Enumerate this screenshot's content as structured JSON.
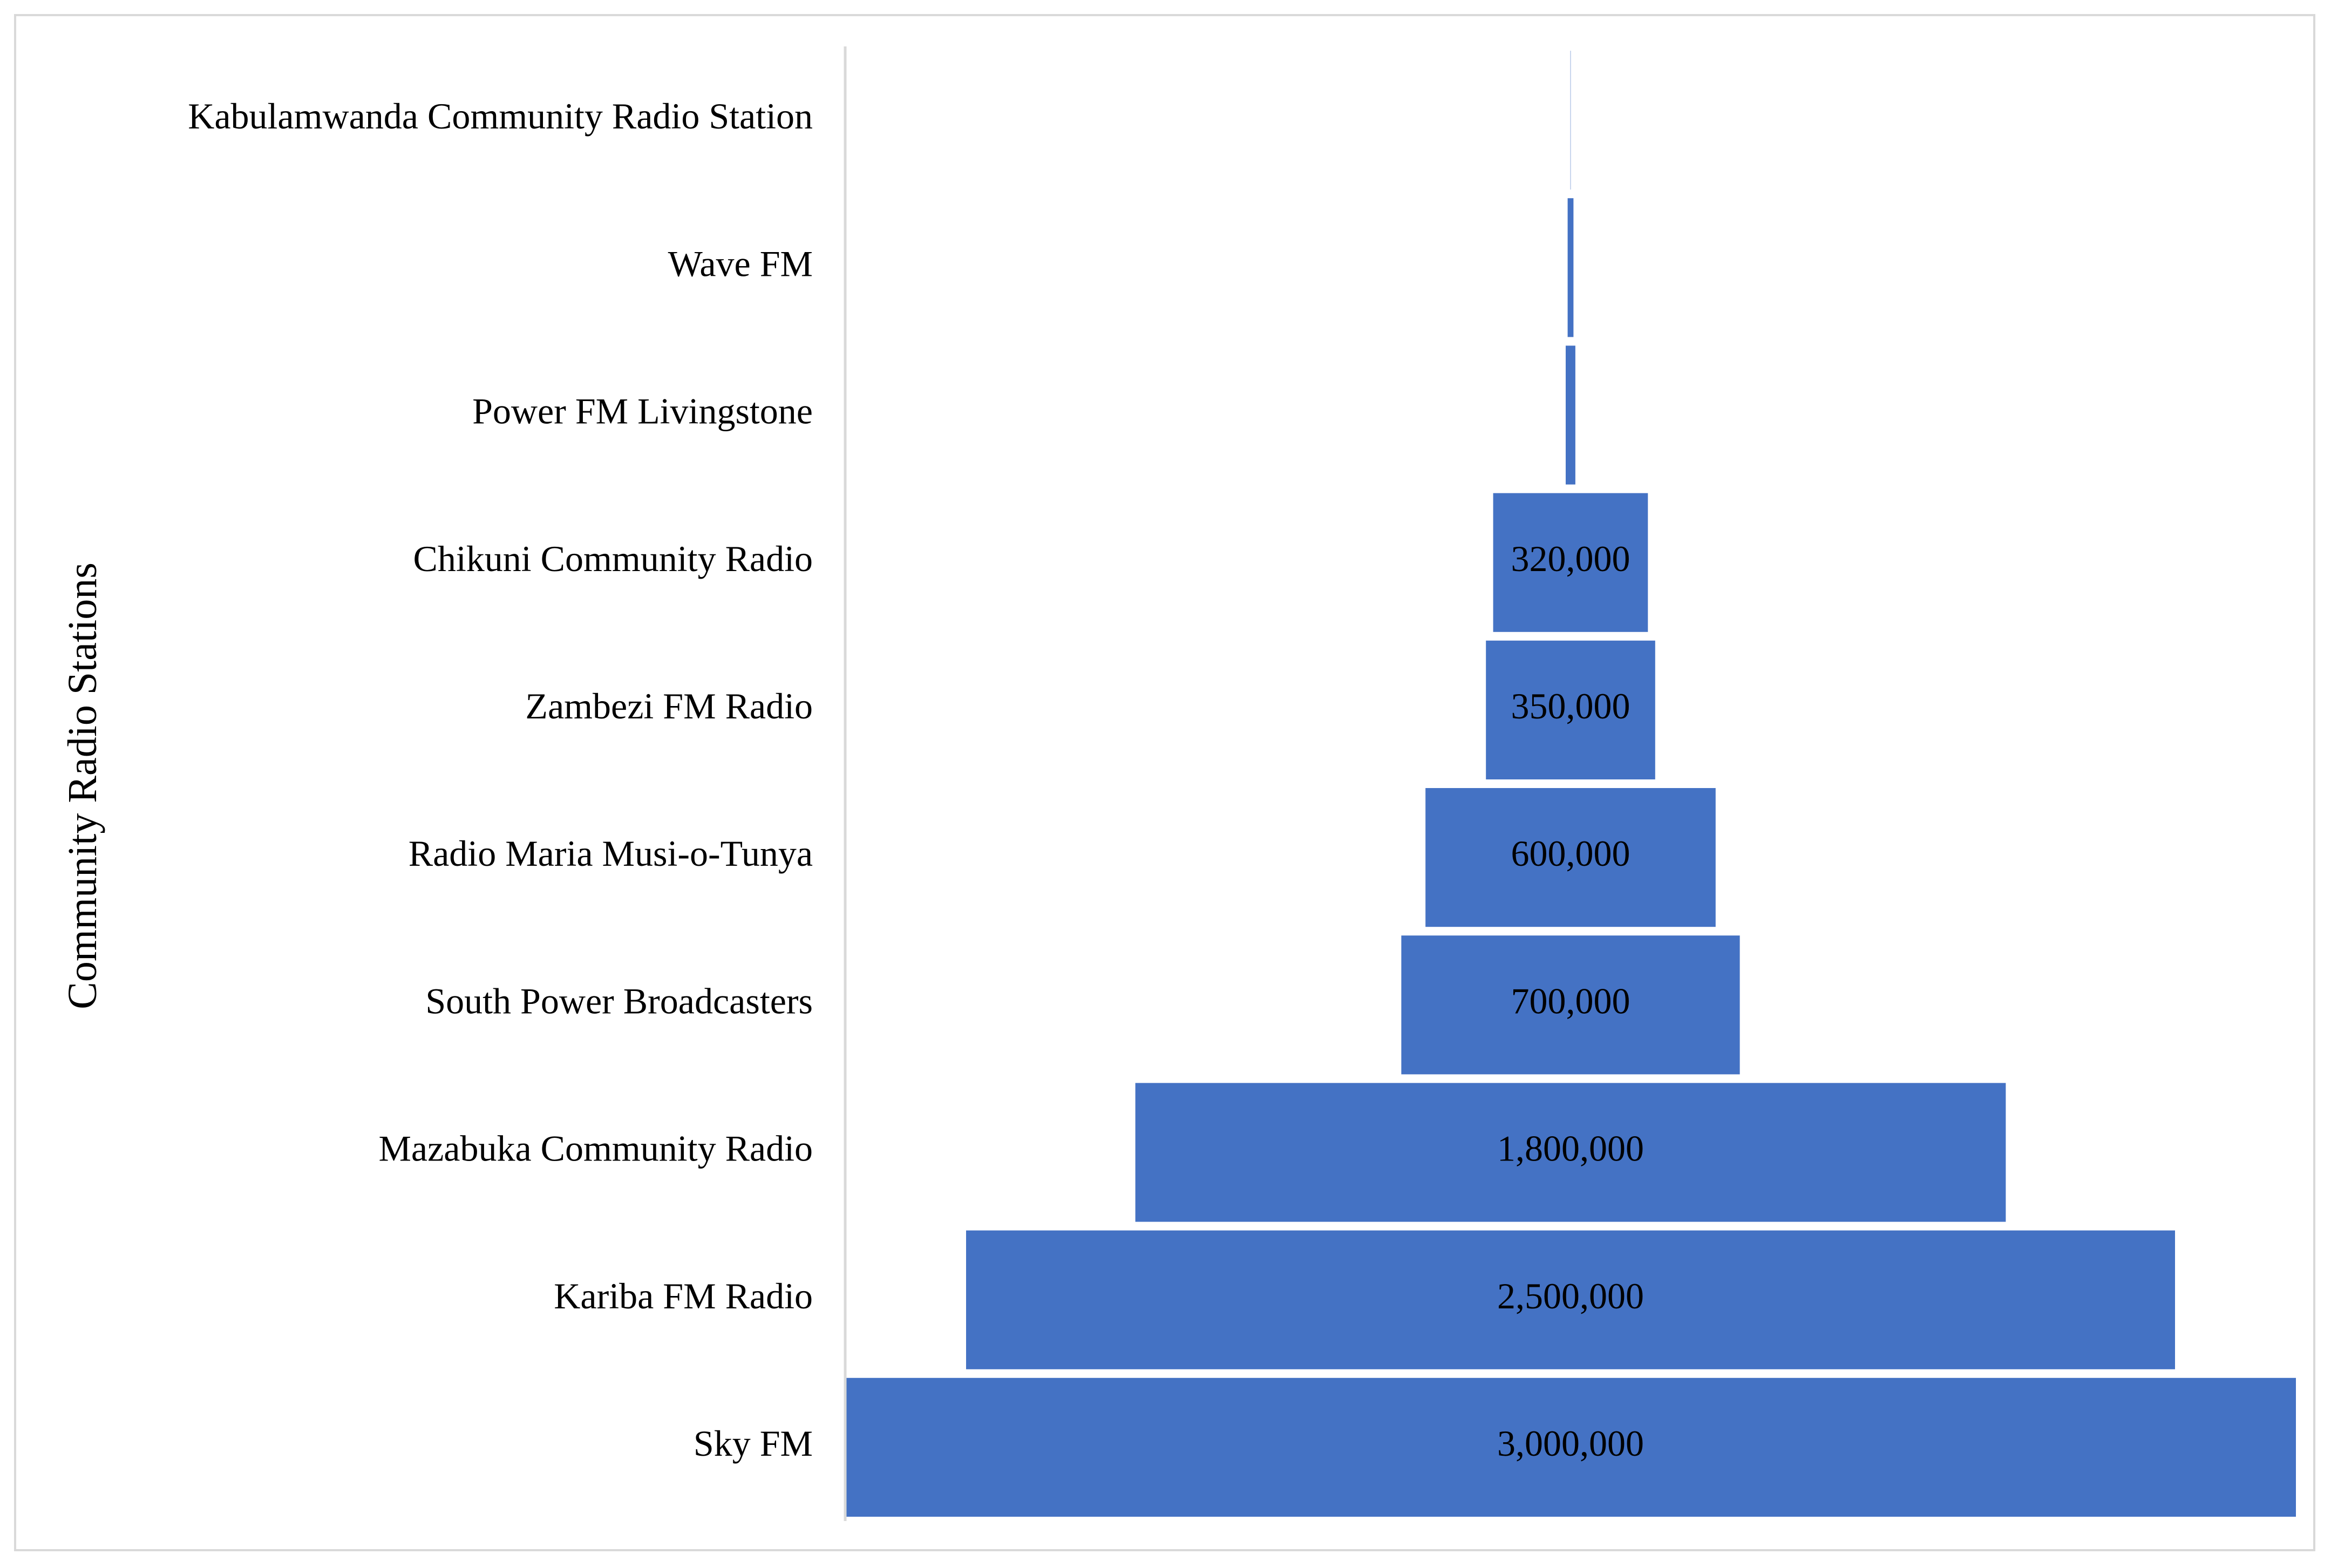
{
  "chart_data": {
    "type": "bar",
    "subtype": "funnel",
    "orientation": "horizontal",
    "title": "",
    "ylabel": "Community Radio Stations",
    "xlabel": "",
    "categories": [
      "Kabulamwanda Community Radio Station",
      "Wave FM",
      "Power FM Livingstone",
      "Chikuni Community Radio",
      "Zambezi FM Radio",
      "Radio Maria Musi-o-Tunya",
      "South Power Broadcasters",
      "Mazabuka Community Radio",
      "Kariba FM Radio",
      "Sky FM"
    ],
    "values": [
      500,
      12000,
      20000,
      320000,
      350000,
      600000,
      700000,
      1800000,
      2500000,
      3000000
    ],
    "data_labels": [
      "",
      "",
      "",
      "320,000",
      "350,000",
      "600,000",
      "700,000",
      "1,800,000",
      "2,500,000",
      "3,000,000"
    ],
    "xlim": [
      0,
      3000000
    ],
    "grid": false,
    "legend": "none",
    "bar_color": "#4472C4",
    "axis_line_color": "#d9d9d9"
  }
}
